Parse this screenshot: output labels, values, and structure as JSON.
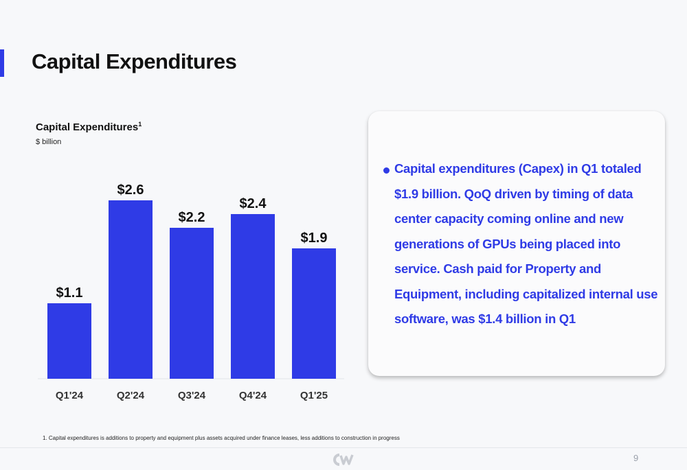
{
  "page": {
    "title": "Capital Expenditures",
    "page_number": "9"
  },
  "chart_header": {
    "title": "Capital Expenditures",
    "footnote_marker": "1",
    "unit": "$ billion"
  },
  "callout": {
    "text": "Capital expenditures (Capex) in Q1 totaled $1.9 billion. QoQ driven by timing of data center capacity coming online and new generations of GPUs being placed into service. Cash paid for Property and Equipment, including capitalized internal use software, was $1.4 billion in Q1"
  },
  "footnote": "1. Capital expenditures is additions to property and equipment plus assets acquired under finance leases, less additions to construction in progress",
  "colors": {
    "bar": "#2f3be6",
    "accent": "#2f3be6"
  },
  "icons": {
    "footer_logo": "company-logo-icon"
  },
  "chart_data": {
    "type": "bar",
    "title": "Capital Expenditures",
    "ylabel": "$ billion",
    "xlabel": "",
    "categories": [
      "Q1'24",
      "Q2'24",
      "Q3'24",
      "Q4'24",
      "Q1'25"
    ],
    "values": [
      1.1,
      2.6,
      2.2,
      2.4,
      1.9
    ],
    "data_labels": [
      "$1.1",
      "$2.6",
      "$2.2",
      "$2.4",
      "$1.9"
    ],
    "ylim": [
      0,
      3.0
    ],
    "grid": false,
    "legend": "none"
  }
}
